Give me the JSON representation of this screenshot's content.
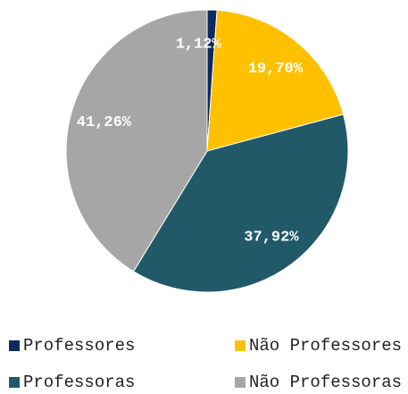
{
  "chart_data": {
    "type": "pie",
    "categories": [
      "Professores",
      "Não Professores",
      "Professoras",
      "Não Professoras"
    ],
    "values": [
      1.12,
      19.7,
      37.92,
      41.26
    ],
    "value_labels": [
      "1,12%",
      "19,70%",
      "37,92%",
      "41,26%"
    ],
    "colors": [
      "#0e2a5e",
      "#ffc000",
      "#215968",
      "#a6a6a6"
    ]
  }
}
